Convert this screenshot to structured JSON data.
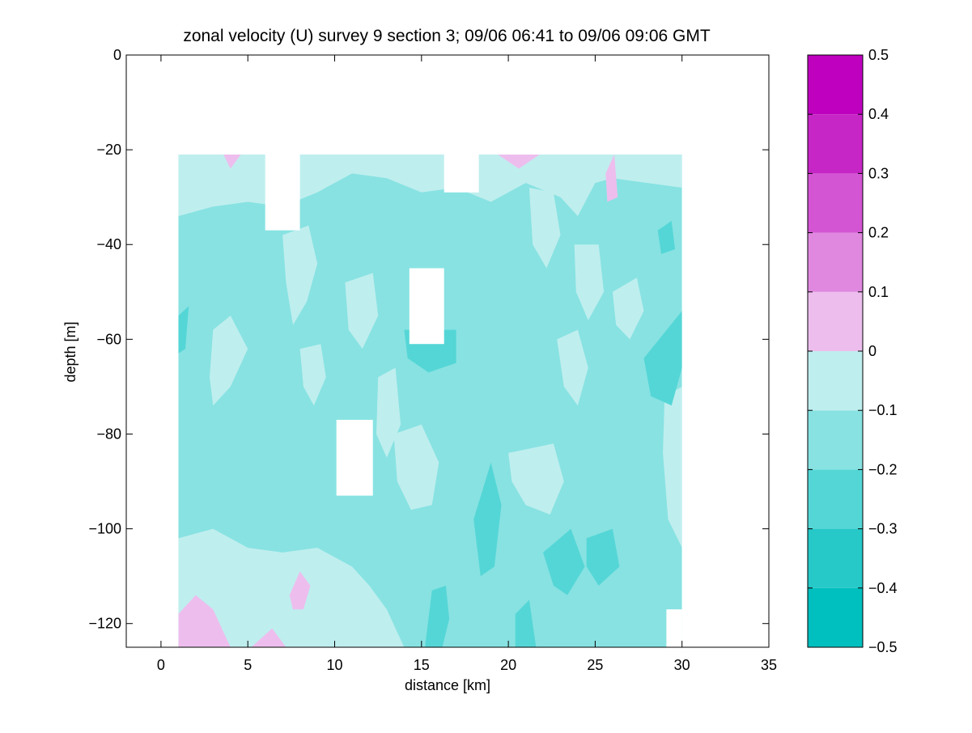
{
  "chart_data": {
    "type": "heatmap",
    "title": "zonal velocity (U) survey 9 section 3; 09/06 06:41 to 09/06 09:06 GMT",
    "xlabel": "distance [km]",
    "ylabel": "depth [m]",
    "xlim": [
      -2,
      35
    ],
    "ylim": [
      -125,
      0
    ],
    "xticks": [
      0,
      5,
      10,
      15,
      20,
      25,
      30,
      35
    ],
    "yticks": [
      0,
      -20,
      -40,
      -60,
      -80,
      -100,
      -120
    ],
    "data_extent": {
      "x": [
        1,
        30
      ],
      "y": [
        -125,
        -21
      ]
    },
    "colorbar": {
      "range": [
        -0.5,
        0.5
      ],
      "levels": [
        -0.5,
        -0.4,
        -0.3,
        -0.2,
        -0.1,
        0,
        0.1,
        0.2,
        0.3,
        0.4,
        0.5
      ],
      "tick_labels": [
        "−0.5",
        "−0.4",
        "−0.3",
        "−0.2",
        "−0.1",
        "0",
        "0.1",
        "0.2",
        "0.3",
        "0.4",
        "0.5"
      ],
      "colors": [
        "#00BFBF",
        "#26C8C8",
        "#55D6D6",
        "#88E2E2",
        "#BFEEEE",
        "#EDBEED",
        "#E088E0",
        "#D355D3",
        "#C626C6",
        "#BF00BF"
      ]
    },
    "background_class_color": "#88E2E2",
    "regions": [
      {
        "color": "#BFEEEE",
        "polygon": [
          [
            1,
            -21
          ],
          [
            30,
            -21
          ],
          [
            30,
            -28
          ],
          [
            28,
            -27
          ],
          [
            26,
            -26
          ],
          [
            25,
            -27
          ],
          [
            24,
            -34
          ],
          [
            23,
            -30
          ],
          [
            21,
            -27
          ],
          [
            19,
            -31
          ],
          [
            17,
            -28
          ],
          [
            15,
            -29
          ],
          [
            13,
            -26
          ],
          [
            11,
            -25
          ],
          [
            9,
            -29
          ],
          [
            7,
            -32
          ],
          [
            5,
            -31
          ],
          [
            3,
            -32
          ],
          [
            1,
            -34
          ]
        ]
      },
      {
        "color": "#BFEEEE",
        "polygon": [
          [
            1,
            -102
          ],
          [
            3,
            -100
          ],
          [
            5,
            -104
          ],
          [
            7,
            -105
          ],
          [
            9,
            -104
          ],
          [
            11,
            -108
          ],
          [
            12,
            -112
          ],
          [
            13,
            -117
          ],
          [
            14,
            -125
          ],
          [
            1,
            -125
          ]
        ]
      },
      {
        "color": "#BFEEEE",
        "polygon": [
          [
            3,
            -58
          ],
          [
            4,
            -55
          ],
          [
            5,
            -62
          ],
          [
            4,
            -70
          ],
          [
            3,
            -74
          ],
          [
            2.8,
            -68
          ]
        ]
      },
      {
        "color": "#BFEEEE",
        "polygon": [
          [
            7,
            -38
          ],
          [
            8.5,
            -36
          ],
          [
            9,
            -44
          ],
          [
            8.4,
            -52
          ],
          [
            7.6,
            -57
          ],
          [
            7.2,
            -48
          ]
        ]
      },
      {
        "color": "#BFEEEE",
        "polygon": [
          [
            8,
            -62
          ],
          [
            9.2,
            -61
          ],
          [
            9.5,
            -68
          ],
          [
            8.8,
            -74
          ],
          [
            8.2,
            -70
          ]
        ]
      },
      {
        "color": "#BFEEEE",
        "polygon": [
          [
            10.6,
            -48
          ],
          [
            12.2,
            -46
          ],
          [
            12.5,
            -55
          ],
          [
            11.6,
            -62
          ],
          [
            10.8,
            -58
          ]
        ]
      },
      {
        "color": "#BFEEEE",
        "polygon": [
          [
            12.5,
            -68
          ],
          [
            13.5,
            -66
          ],
          [
            13.8,
            -78
          ],
          [
            13,
            -85
          ],
          [
            12.4,
            -80
          ]
        ]
      },
      {
        "color": "#BFEEEE",
        "polygon": [
          [
            13.4,
            -80
          ],
          [
            15,
            -78
          ],
          [
            16,
            -86
          ],
          [
            15.6,
            -95
          ],
          [
            14.4,
            -96
          ],
          [
            13.6,
            -90
          ]
        ]
      },
      {
        "color": "#BFEEEE",
        "polygon": [
          [
            21.2,
            -28
          ],
          [
            22.6,
            -29
          ],
          [
            23,
            -38
          ],
          [
            22.2,
            -45
          ],
          [
            21.4,
            -40
          ]
        ]
      },
      {
        "color": "#BFEEEE",
        "polygon": [
          [
            23.8,
            -40
          ],
          [
            25.2,
            -40
          ],
          [
            25.5,
            -50
          ],
          [
            24.6,
            -56
          ],
          [
            23.9,
            -50
          ]
        ]
      },
      {
        "color": "#BFEEEE",
        "polygon": [
          [
            22.8,
            -60
          ],
          [
            24,
            -58
          ],
          [
            24.6,
            -66
          ],
          [
            24,
            -74
          ],
          [
            23.2,
            -70
          ]
        ]
      },
      {
        "color": "#BFEEEE",
        "polygon": [
          [
            26,
            -50
          ],
          [
            27.4,
            -47
          ],
          [
            27.8,
            -54
          ],
          [
            27,
            -60
          ],
          [
            26.2,
            -57
          ]
        ]
      },
      {
        "color": "#BFEEEE",
        "polygon": [
          [
            20,
            -84
          ],
          [
            22.6,
            -82
          ],
          [
            23.2,
            -90
          ],
          [
            22.4,
            -97
          ],
          [
            21,
            -95
          ],
          [
            20.2,
            -90
          ]
        ]
      },
      {
        "color": "#BFEEEE",
        "polygon": [
          [
            29,
            -72
          ],
          [
            30,
            -70
          ],
          [
            30,
            -104
          ],
          [
            29.2,
            -98
          ],
          [
            28.9,
            -84
          ]
        ]
      },
      {
        "color": "#EDBEED",
        "polygon": [
          [
            1,
            -125
          ],
          [
            1,
            -118
          ],
          [
            2,
            -114
          ],
          [
            3,
            -117
          ],
          [
            4,
            -125
          ]
        ]
      },
      {
        "color": "#EDBEED",
        "polygon": [
          [
            7.4,
            -114
          ],
          [
            8,
            -109
          ],
          [
            8.6,
            -112
          ],
          [
            8.2,
            -117
          ],
          [
            7.6,
            -117
          ]
        ]
      },
      {
        "color": "#EDBEED",
        "polygon": [
          [
            25.6,
            -25
          ],
          [
            26.1,
            -21
          ],
          [
            26.3,
            -30
          ],
          [
            25.7,
            -31
          ]
        ]
      },
      {
        "color": "#EDBEED",
        "polygon": [
          [
            5.2,
            -125
          ],
          [
            6.4,
            -121
          ],
          [
            7.2,
            -125
          ]
        ]
      },
      {
        "color": "#EDBEED",
        "polygon": [
          [
            3.6,
            -21
          ],
          [
            4.6,
            -21
          ],
          [
            4.0,
            -24
          ]
        ]
      },
      {
        "color": "#EDBEED",
        "polygon": [
          [
            19.4,
            -21
          ],
          [
            21.8,
            -21
          ],
          [
            20.6,
            -24
          ]
        ]
      },
      {
        "color": "#55D6D6",
        "polygon": [
          [
            14,
            -58
          ],
          [
            17,
            -58
          ],
          [
            17,
            -65
          ],
          [
            15.4,
            -67
          ],
          [
            14.2,
            -64
          ]
        ]
      },
      {
        "color": "#55D6D6",
        "polygon": [
          [
            27.8,
            -64
          ],
          [
            30,
            -54
          ],
          [
            30,
            -66
          ],
          [
            29.4,
            -74
          ],
          [
            28.2,
            -72
          ]
        ]
      },
      {
        "color": "#55D6D6",
        "polygon": [
          [
            28.6,
            -37
          ],
          [
            29.4,
            -35
          ],
          [
            29.6,
            -41
          ],
          [
            28.8,
            -42
          ]
        ]
      },
      {
        "color": "#55D6D6",
        "polygon": [
          [
            18,
            -98
          ],
          [
            19,
            -86
          ],
          [
            19.6,
            -95
          ],
          [
            19.2,
            -108
          ],
          [
            18.4,
            -110
          ]
        ]
      },
      {
        "color": "#55D6D6",
        "polygon": [
          [
            22,
            -105
          ],
          [
            23.6,
            -100
          ],
          [
            24.4,
            -108
          ],
          [
            23.4,
            -114
          ],
          [
            22.6,
            -112
          ]
        ]
      },
      {
        "color": "#55D6D6",
        "polygon": [
          [
            15.6,
            -113
          ],
          [
            16.4,
            -112
          ],
          [
            16.6,
            -119
          ],
          [
            16.2,
            -125
          ],
          [
            15.2,
            -125
          ]
        ]
      },
      {
        "color": "#55D6D6",
        "polygon": [
          [
            20.4,
            -118
          ],
          [
            21.2,
            -115
          ],
          [
            21.6,
            -125
          ],
          [
            20.4,
            -125
          ]
        ]
      },
      {
        "color": "#55D6D6",
        "polygon": [
          [
            24.5,
            -102
          ],
          [
            26,
            -100
          ],
          [
            26.4,
            -108
          ],
          [
            25.2,
            -112
          ],
          [
            24.5,
            -108
          ]
        ]
      },
      {
        "color": "#55D6D6",
        "polygon": [
          [
            1,
            -55
          ],
          [
            1.6,
            -53
          ],
          [
            1.4,
            -62
          ],
          [
            1,
            -63
          ]
        ]
      }
    ],
    "missing_regions": [
      {
        "x": [
          6.0,
          8.0
        ],
        "y": [
          -37,
          -21
        ]
      },
      {
        "x": [
          16.3,
          18.3
        ],
        "y": [
          -29,
          -21
        ]
      },
      {
        "x": [
          14.3,
          16.3
        ],
        "y": [
          -61,
          -45
        ]
      },
      {
        "x": [
          10.1,
          12.2
        ],
        "y": [
          -93,
          -77
        ]
      },
      {
        "x": [
          29.1,
          30.0
        ],
        "y": [
          -125,
          -117
        ]
      }
    ]
  }
}
